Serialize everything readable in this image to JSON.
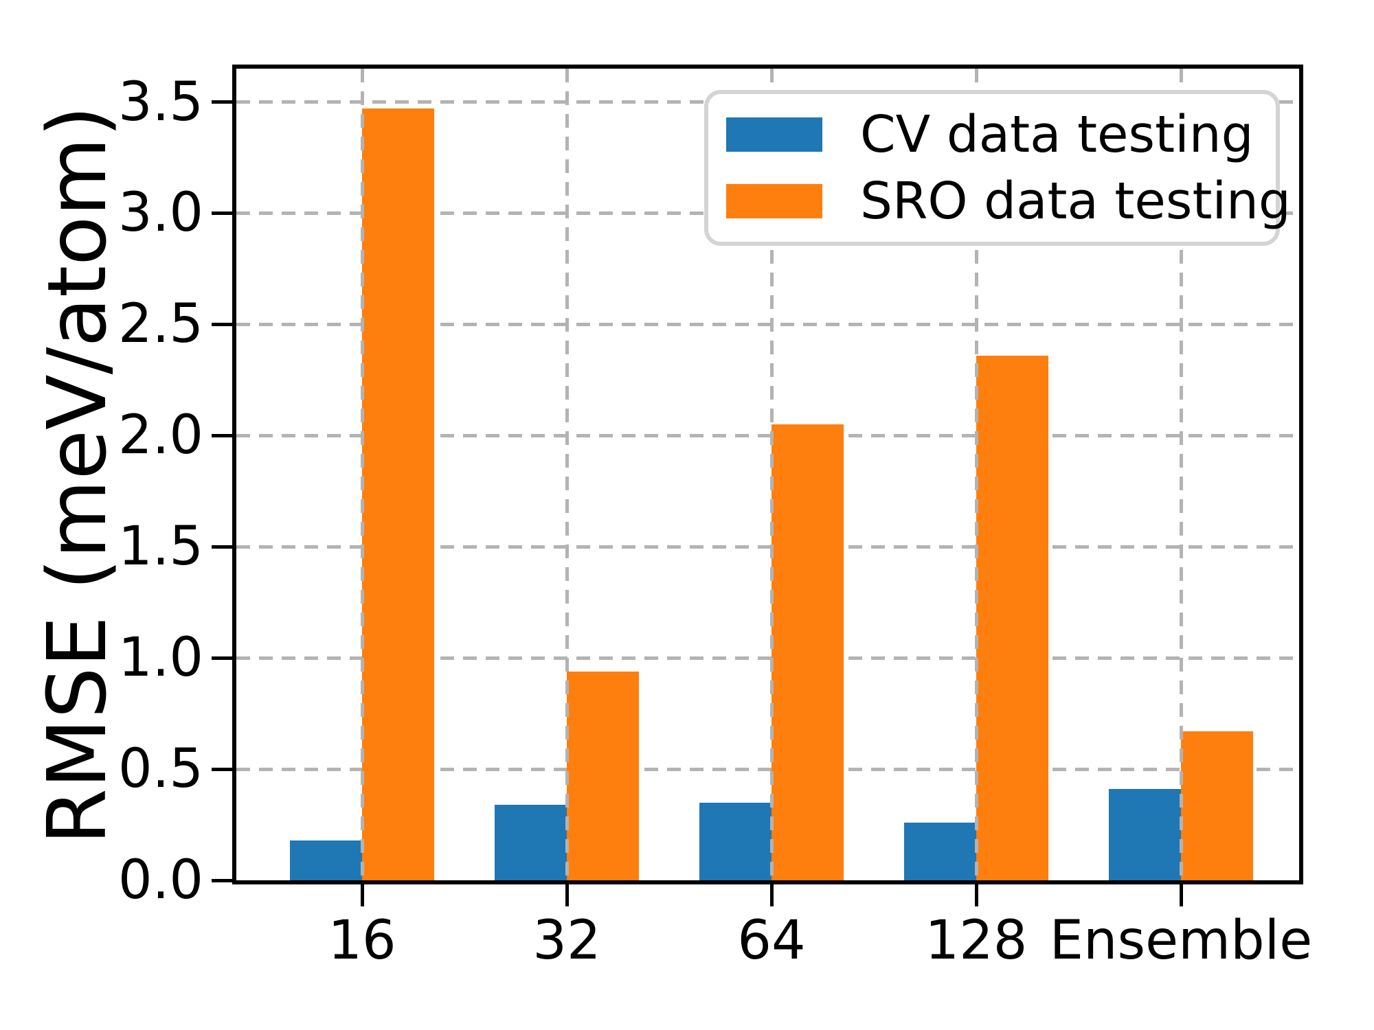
{
  "chart_data": {
    "type": "bar",
    "categories": [
      "16",
      "32",
      "64",
      "128",
      "Ensemble"
    ],
    "series": [
      {
        "name": "CV data testing",
        "color": "#1f77b4",
        "values": [
          0.18,
          0.34,
          0.35,
          0.26,
          0.41
        ]
      },
      {
        "name": "SRO data testing",
        "color": "#ff7f0e",
        "values": [
          3.47,
          0.94,
          2.05,
          2.36,
          0.67
        ]
      }
    ],
    "title": "",
    "xlabel": "",
    "ylabel": "RMSE (meV/atom)",
    "yticks": [
      0.0,
      0.5,
      1.0,
      1.5,
      2.0,
      2.5,
      3.0,
      3.5
    ],
    "ytick_labels": [
      "0.0",
      "0.5",
      "1.0",
      "1.5",
      "2.0",
      "2.5",
      "3.0",
      "3.5"
    ],
    "ylim": [
      0,
      3.65
    ],
    "grid": {
      "style": "dashed",
      "color": "#b3b3b3",
      "horizontal": true,
      "vertical": true
    },
    "legend": {
      "position": "upper right"
    }
  }
}
